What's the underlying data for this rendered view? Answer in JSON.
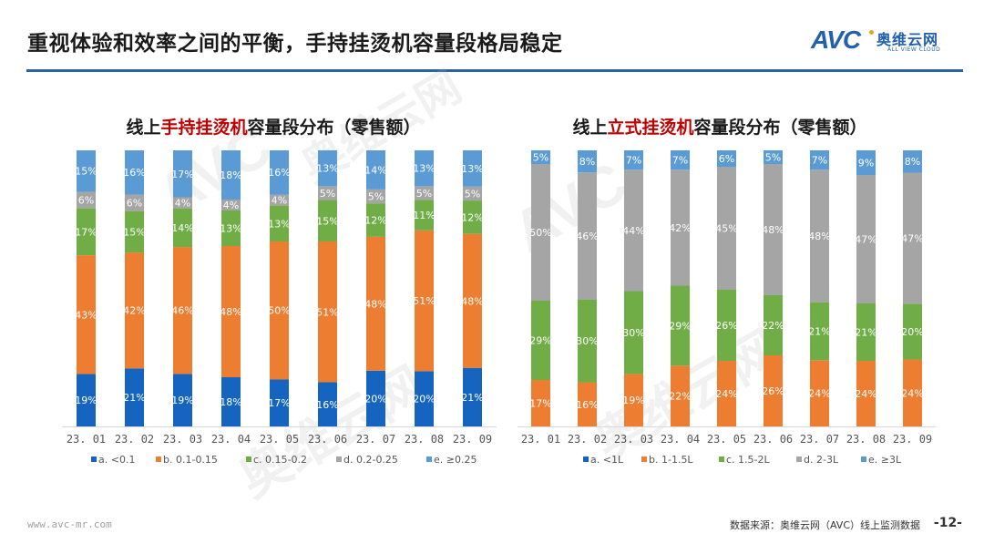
{
  "header": {
    "title": "重视体验和效率之间的平衡，手持挂烫机容量段格局稳定",
    "logo_mark": "AVC",
    "logo_cn": "奥维云网",
    "logo_en": "ALL VIEW CLOUD",
    "accent_color": "#2a63a6"
  },
  "watermark": {
    "text_mark": "AVC",
    "text_cn": "奥维云网"
  },
  "colors": {
    "a": "#1565c0",
    "b": "#ed7d31",
    "c": "#70ad47",
    "d": "#a5a5a5",
    "e": "#5b9bd5",
    "title_highlight": "#c00000"
  },
  "chart_data": [
    {
      "type": "bar",
      "stacked": true,
      "normalized": true,
      "title_prefix": "线上",
      "title_highlight": "手持挂烫机",
      "title_suffix": "容量段分布（零售额）",
      "categories": [
        "23.01",
        "23.02",
        "23.03",
        "23.04",
        "23.05",
        "23.06",
        "23.07",
        "23.08",
        "23.09"
      ],
      "series": [
        {
          "key": "a",
          "name": "a. <0.1",
          "values": [
            19,
            21,
            19,
            18,
            17,
            16,
            20,
            20,
            21
          ]
        },
        {
          "key": "b",
          "name": "b. 0.1-0.15",
          "values": [
            43,
            42,
            46,
            48,
            50,
            51,
            48,
            51,
            48
          ]
        },
        {
          "key": "c",
          "name": "c. 0.15-0.2",
          "values": [
            17,
            15,
            14,
            13,
            13,
            15,
            12,
            11,
            12
          ]
        },
        {
          "key": "d",
          "name": "d. 0.2-0.25",
          "values": [
            6,
            6,
            4,
            4,
            4,
            5,
            5,
            5,
            5
          ]
        },
        {
          "key": "e",
          "name": "e. ≥0.25",
          "values": [
            15,
            16,
            17,
            18,
            16,
            13,
            14,
            13,
            13
          ]
        }
      ],
      "value_suffix": "%",
      "ylim": [
        0,
        100
      ],
      "grid": false,
      "legend": "bottom"
    },
    {
      "type": "bar",
      "stacked": true,
      "normalized": true,
      "title_prefix": "线上",
      "title_highlight": "立式挂烫机",
      "title_suffix": "容量段分布（零售额）",
      "categories": [
        "23.01",
        "23.02",
        "23.03",
        "23.04",
        "23.05",
        "23.06",
        "23.07",
        "23.08",
        "23.09"
      ],
      "series": [
        {
          "key": "a",
          "name": "a. <1L",
          "values": [
            0,
            0,
            0,
            0,
            0,
            0,
            0,
            0,
            0
          ]
        },
        {
          "key": "b",
          "name": "b. 1-1.5L",
          "values": [
            17,
            16,
            19,
            22,
            24,
            26,
            24,
            24,
            24
          ]
        },
        {
          "key": "c",
          "name": "c. 1.5-2L",
          "values": [
            29,
            30,
            30,
            29,
            26,
            22,
            21,
            21,
            20
          ]
        },
        {
          "key": "d",
          "name": "d. 2-3L",
          "values": [
            50,
            46,
            44,
            42,
            45,
            48,
            48,
            47,
            47
          ]
        },
        {
          "key": "e",
          "name": "e. ≥3L",
          "values": [
            5,
            8,
            7,
            7,
            6,
            5,
            7,
            9,
            8
          ]
        }
      ],
      "value_suffix": "%",
      "ylim": [
        0,
        100
      ],
      "grid": false,
      "legend": "bottom"
    }
  ],
  "footer": {
    "url": "www.avc-mr.com",
    "source": "数据来源：奥维云网（AVC）线上监测数据",
    "page": "-12-"
  }
}
